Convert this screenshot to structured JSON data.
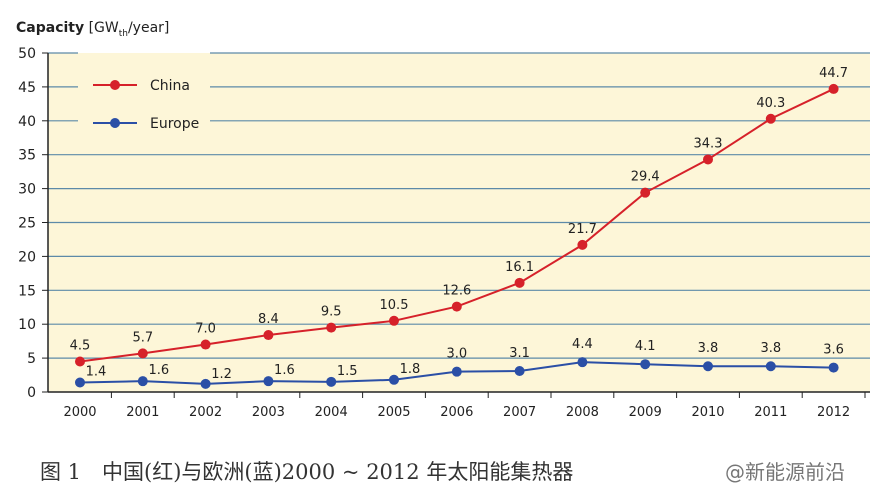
{
  "chart_data": {
    "type": "line",
    "ylabel": "Capacity [GWth/year]",
    "ylabel_parts": {
      "bold": "Capacity",
      "unit": "[GW",
      "sub": "th",
      "rest": "/year]"
    },
    "x": [
      2000,
      2001,
      2002,
      2003,
      2004,
      2005,
      2006,
      2007,
      2008,
      2009,
      2010,
      2011,
      2012
    ],
    "xticks": [
      "2000",
      "2001",
      "2002",
      "2003",
      "2004",
      "2005",
      "2006",
      "2007",
      "2008",
      "2009",
      "2010",
      "2011",
      "2012"
    ],
    "ylim": [
      0,
      50
    ],
    "yticks": [
      "0",
      "5",
      "10",
      "15",
      "20",
      "25",
      "30",
      "35",
      "40",
      "45",
      "50"
    ],
    "grid": true,
    "legend": "top-left",
    "background": "#fdf6d8",
    "series": [
      {
        "name": "China",
        "color": "#d6212a",
        "values": [
          4.5,
          5.7,
          7.0,
          8.4,
          9.5,
          10.5,
          12.6,
          16.1,
          21.7,
          29.4,
          34.3,
          40.3,
          44.7
        ],
        "labels": [
          "4.5",
          "5.7",
          "7.0",
          "8.4",
          "9.5",
          "10.5",
          "12.6",
          "16.1",
          "21.7",
          "29.4",
          "34.3",
          "40.3",
          "44.7"
        ]
      },
      {
        "name": "Europe",
        "color": "#2b4fa6",
        "values": [
          1.4,
          1.6,
          1.2,
          1.6,
          1.5,
          1.8,
          3.0,
          3.1,
          4.4,
          4.1,
          3.8,
          3.8,
          3.6
        ],
        "labels": [
          "1.4",
          "1.6",
          "1.2",
          "1.6",
          "1.5",
          "1.8",
          "3.0",
          "3.1",
          "4.4",
          "4.1",
          "3.8",
          "3.8",
          "3.6"
        ]
      }
    ]
  },
  "caption": "图 1　中国(红)与欧洲(蓝)2000 ~ 2012 年太阳能集热器",
  "watermark": "@新能源前沿"
}
